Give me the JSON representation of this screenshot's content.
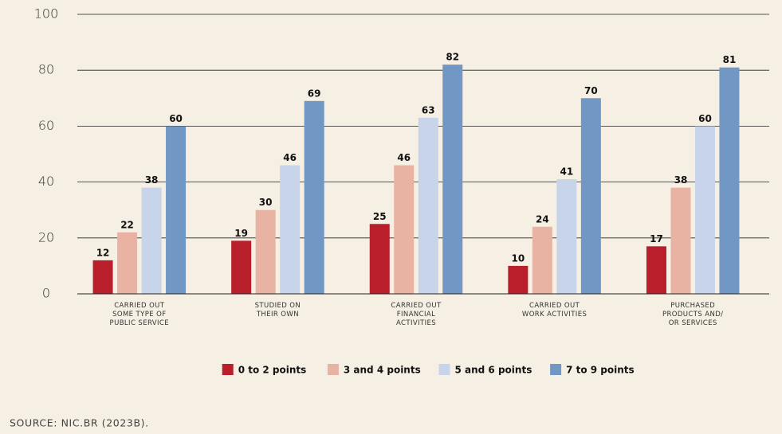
{
  "chart_data": {
    "type": "bar",
    "categories": [
      "CARRIED OUT\nSOME TYPE OF\nPUBLIC SERVICE",
      "STUDIED ON\nTHEIR OWN",
      "CARRIED OUT\nFINANCIAL\nACTIVITIES",
      "CARRIED OUT\nWORK ACTIVITIES",
      "PURCHASED\nPRODUCTS AND/\nOR SERVICES"
    ],
    "series": [
      {
        "name": "0 to 2 points",
        "color": "#b81f2a",
        "values": [
          12,
          19,
          25,
          10,
          17
        ]
      },
      {
        "name": "3 and 4 points",
        "color": "#e8b3a3",
        "values": [
          22,
          30,
          46,
          24,
          38
        ]
      },
      {
        "name": "5 and 6 points",
        "color": "#c7d4ea",
        "values": [
          38,
          46,
          63,
          41,
          60
        ]
      },
      {
        "name": "7 to 9 points",
        "color": "#7197c4",
        "values": [
          60,
          69,
          82,
          70,
          81
        ]
      }
    ],
    "ylim": [
      0,
      100
    ],
    "yticks": [
      0,
      20,
      40,
      60,
      80,
      100
    ],
    "grid": true,
    "source": "SOURCE: NIC.BR (2023B)."
  }
}
